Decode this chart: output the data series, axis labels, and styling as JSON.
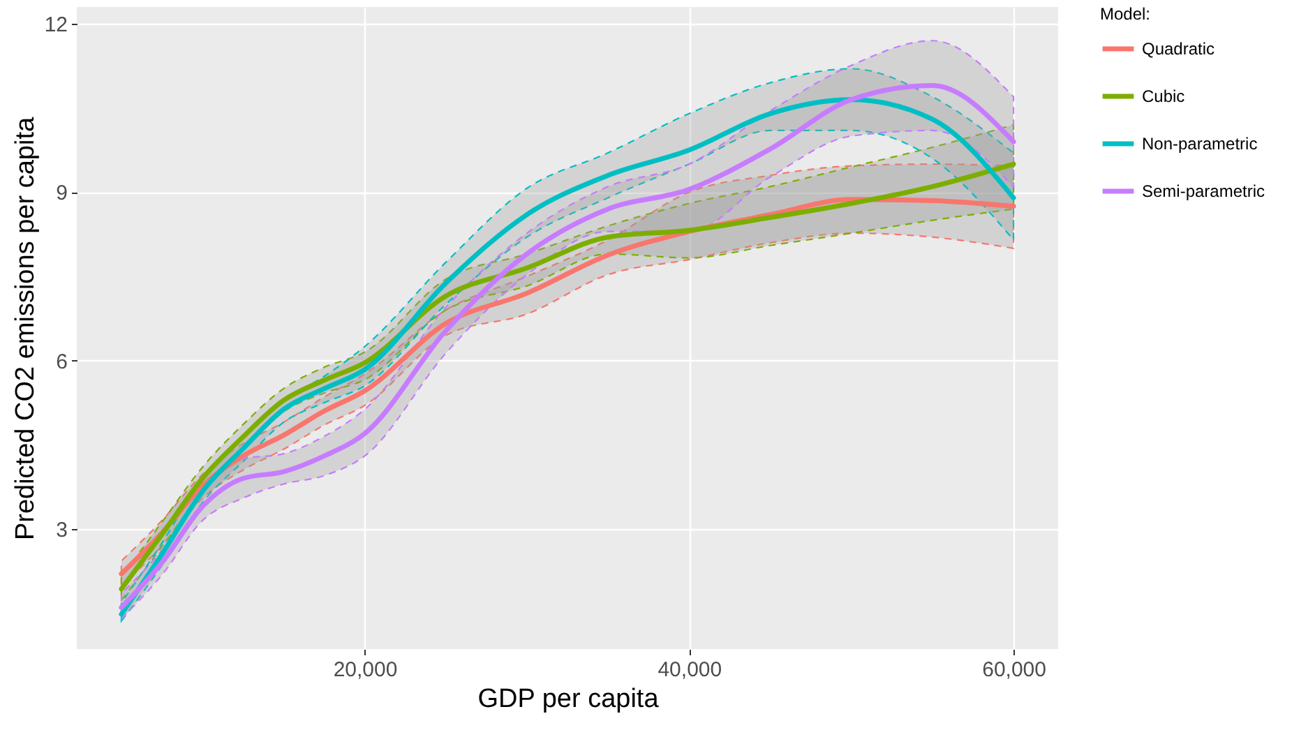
{
  "chart_data": {
    "type": "line",
    "xlabel": "GDP per capita",
    "ylabel": "Predicted CO2 emissions per capita",
    "legend_title": "Model:",
    "legend": "right",
    "grid": true,
    "marker": "none",
    "line_style": "solid",
    "x": [
      5000,
      7500,
      10000,
      12500,
      15000,
      17500,
      20000,
      25000,
      30000,
      35000,
      40000,
      45000,
      50000,
      55000,
      60000
    ],
    "xlim": [
      2250,
      62750
    ],
    "xticks": [
      {
        "value": 20000,
        "label": "20,000"
      },
      {
        "value": 40000,
        "label": "40,000"
      },
      {
        "value": 60000,
        "label": "60,000"
      }
    ],
    "ylim": [
      0.86,
      12.3
    ],
    "yticks": [
      3,
      6,
      9,
      12
    ],
    "series": [
      {
        "name": "Quadratic",
        "color": "#f8766d",
        "values": [
          2.2,
          2.93,
          3.77,
          4.3,
          4.67,
          5.1,
          5.46,
          6.66,
          7.2,
          7.88,
          8.3,
          8.6,
          8.87,
          8.85,
          8.75
        ],
        "lower": [
          1.98,
          2.7,
          3.55,
          4.05,
          4.42,
          4.85,
          5.2,
          6.45,
          6.83,
          7.53,
          7.8,
          8.1,
          8.27,
          8.2,
          8.0
        ],
        "upper": [
          2.43,
          3.15,
          3.97,
          4.52,
          4.9,
          5.35,
          5.76,
          6.9,
          7.5,
          8.15,
          9.0,
          9.3,
          9.47,
          9.5,
          9.47
        ]
      },
      {
        "name": "Cubic",
        "color": "#7cae00",
        "values": [
          1.93,
          2.9,
          3.9,
          4.64,
          5.29,
          5.65,
          5.96,
          7.15,
          7.65,
          8.2,
          8.32,
          8.55,
          8.8,
          9.1,
          9.5
        ],
        "lower": [
          1.73,
          2.68,
          3.67,
          4.42,
          5.09,
          5.42,
          5.66,
          6.9,
          7.33,
          7.9,
          7.83,
          8.05,
          8.27,
          8.5,
          8.7
        ],
        "upper": [
          2.15,
          3.12,
          4.1,
          4.86,
          5.5,
          5.88,
          6.15,
          7.45,
          7.9,
          8.4,
          8.8,
          9.1,
          9.45,
          9.8,
          10.2
        ]
      },
      {
        "name": "Non-parametric",
        "color": "#00bfc4",
        "values": [
          1.48,
          2.55,
          3.67,
          4.43,
          5.13,
          5.5,
          5.84,
          7.38,
          8.6,
          9.3,
          9.75,
          10.4,
          10.65,
          10.3,
          8.9
        ],
        "lower": [
          1.36,
          2.35,
          3.47,
          4.2,
          4.9,
          5.25,
          5.55,
          7.0,
          8.2,
          8.9,
          9.5,
          10.1,
          10.1,
          9.6,
          8.15
        ],
        "upper": [
          1.68,
          2.75,
          3.9,
          4.65,
          5.29,
          5.72,
          6.25,
          7.75,
          9.07,
          9.7,
          10.4,
          10.95,
          11.2,
          10.7,
          9.7
        ]
      },
      {
        "name": "Semi-parametric",
        "color": "#c77cff",
        "values": [
          1.6,
          2.4,
          3.4,
          3.9,
          4.02,
          4.3,
          4.7,
          6.53,
          7.9,
          8.7,
          9.05,
          9.77,
          10.65,
          10.9,
          9.9
        ],
        "lower": [
          1.4,
          2.18,
          3.15,
          3.55,
          3.8,
          3.95,
          4.3,
          6.13,
          7.53,
          8.3,
          8.3,
          9.27,
          10.0,
          10.1,
          9.1
        ],
        "upper": [
          1.85,
          2.62,
          3.64,
          4.25,
          4.34,
          4.65,
          5.13,
          6.95,
          8.27,
          9.1,
          9.5,
          10.45,
          11.26,
          11.7,
          10.7
        ]
      }
    ]
  }
}
